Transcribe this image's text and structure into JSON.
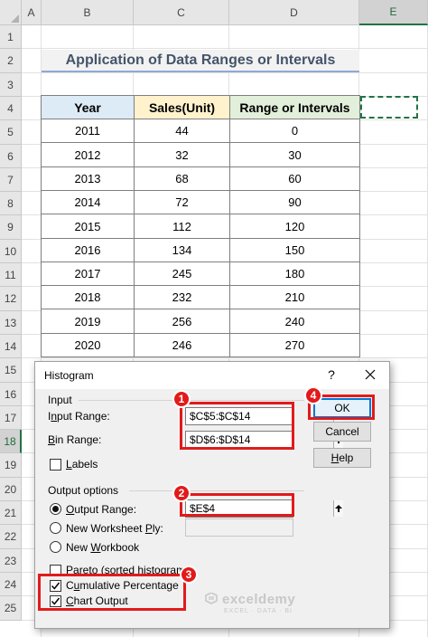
{
  "sheet": {
    "columns": [
      "A",
      "B",
      "C",
      "D",
      "E"
    ],
    "active_column": "E",
    "rows": [
      "1",
      "2",
      "3",
      "4",
      "5",
      "6",
      "7",
      "8",
      "9",
      "10",
      "11",
      "12",
      "13",
      "14",
      "15",
      "16",
      "17",
      "18",
      "19",
      "20",
      "21",
      "22",
      "23",
      "24",
      "25"
    ],
    "active_row": "18",
    "title": "Application of Data Ranges or Intervals",
    "table": {
      "headers": [
        "Year",
        "Sales(Unit)",
        "Range or Intervals"
      ],
      "rows": [
        [
          "2011",
          "44",
          "0"
        ],
        [
          "2012",
          "32",
          "30"
        ],
        [
          "2013",
          "68",
          "60"
        ],
        [
          "2014",
          "72",
          "90"
        ],
        [
          "2015",
          "112",
          "120"
        ],
        [
          "2016",
          "134",
          "150"
        ],
        [
          "2017",
          "245",
          "180"
        ],
        [
          "2018",
          "232",
          "210"
        ],
        [
          "2019",
          "256",
          "240"
        ],
        [
          "2020",
          "246",
          "270"
        ]
      ]
    },
    "colors": {
      "year_header_bg": "#ddebf7",
      "sales_header_bg": "#fff2cc",
      "range_header_bg": "#e2efda",
      "selection_border": "#217346"
    }
  },
  "dialog": {
    "title": "Histogram",
    "help_label": "?",
    "input_group": "Input",
    "input_range_pre": "I",
    "input_range_u": "n",
    "input_range_post": "put Range:",
    "input_range_value": "$C$5:$C$14",
    "bin_range_pre": "",
    "bin_range_u": "B",
    "bin_range_post": "in Range:",
    "bin_range_value": "$D$6:$D$14",
    "labels_pre": "",
    "labels_u": "L",
    "labels_post": "abels",
    "labels_checked": false,
    "output_group": "Output options",
    "output_range_pre": "",
    "output_range_u": "O",
    "output_range_post": "utput Range:",
    "output_range_value": "$E$4",
    "new_ply_pre": "New Worksheet ",
    "new_ply_u": "P",
    "new_ply_post": "ly:",
    "new_workbook_pre": "New ",
    "new_workbook_u": "W",
    "new_workbook_post": "orkbook",
    "pareto_pre": "",
    "pareto_u": "P",
    "pareto_post": "areto (sorted histogram)",
    "pareto_checked": false,
    "cumulative_pre": "C",
    "cumulative_u": "u",
    "cumulative_post": "mulative Percentage",
    "cumulative_checked": true,
    "chart_output_pre": "",
    "chart_output_u": "C",
    "chart_output_post": "hart Output",
    "chart_output_checked": true,
    "ok_label": "OK",
    "cancel_label": "Cancel",
    "help_button_pre": "",
    "help_button_u": "H",
    "help_button_post": "elp",
    "selected_output": "output-range"
  },
  "annotations": {
    "badges": [
      "1",
      "2",
      "3",
      "4"
    ],
    "highlight_color": "#e21a1a"
  },
  "watermark": {
    "name": "exceldemy",
    "tagline": "EXCEL · DATA · BI"
  }
}
